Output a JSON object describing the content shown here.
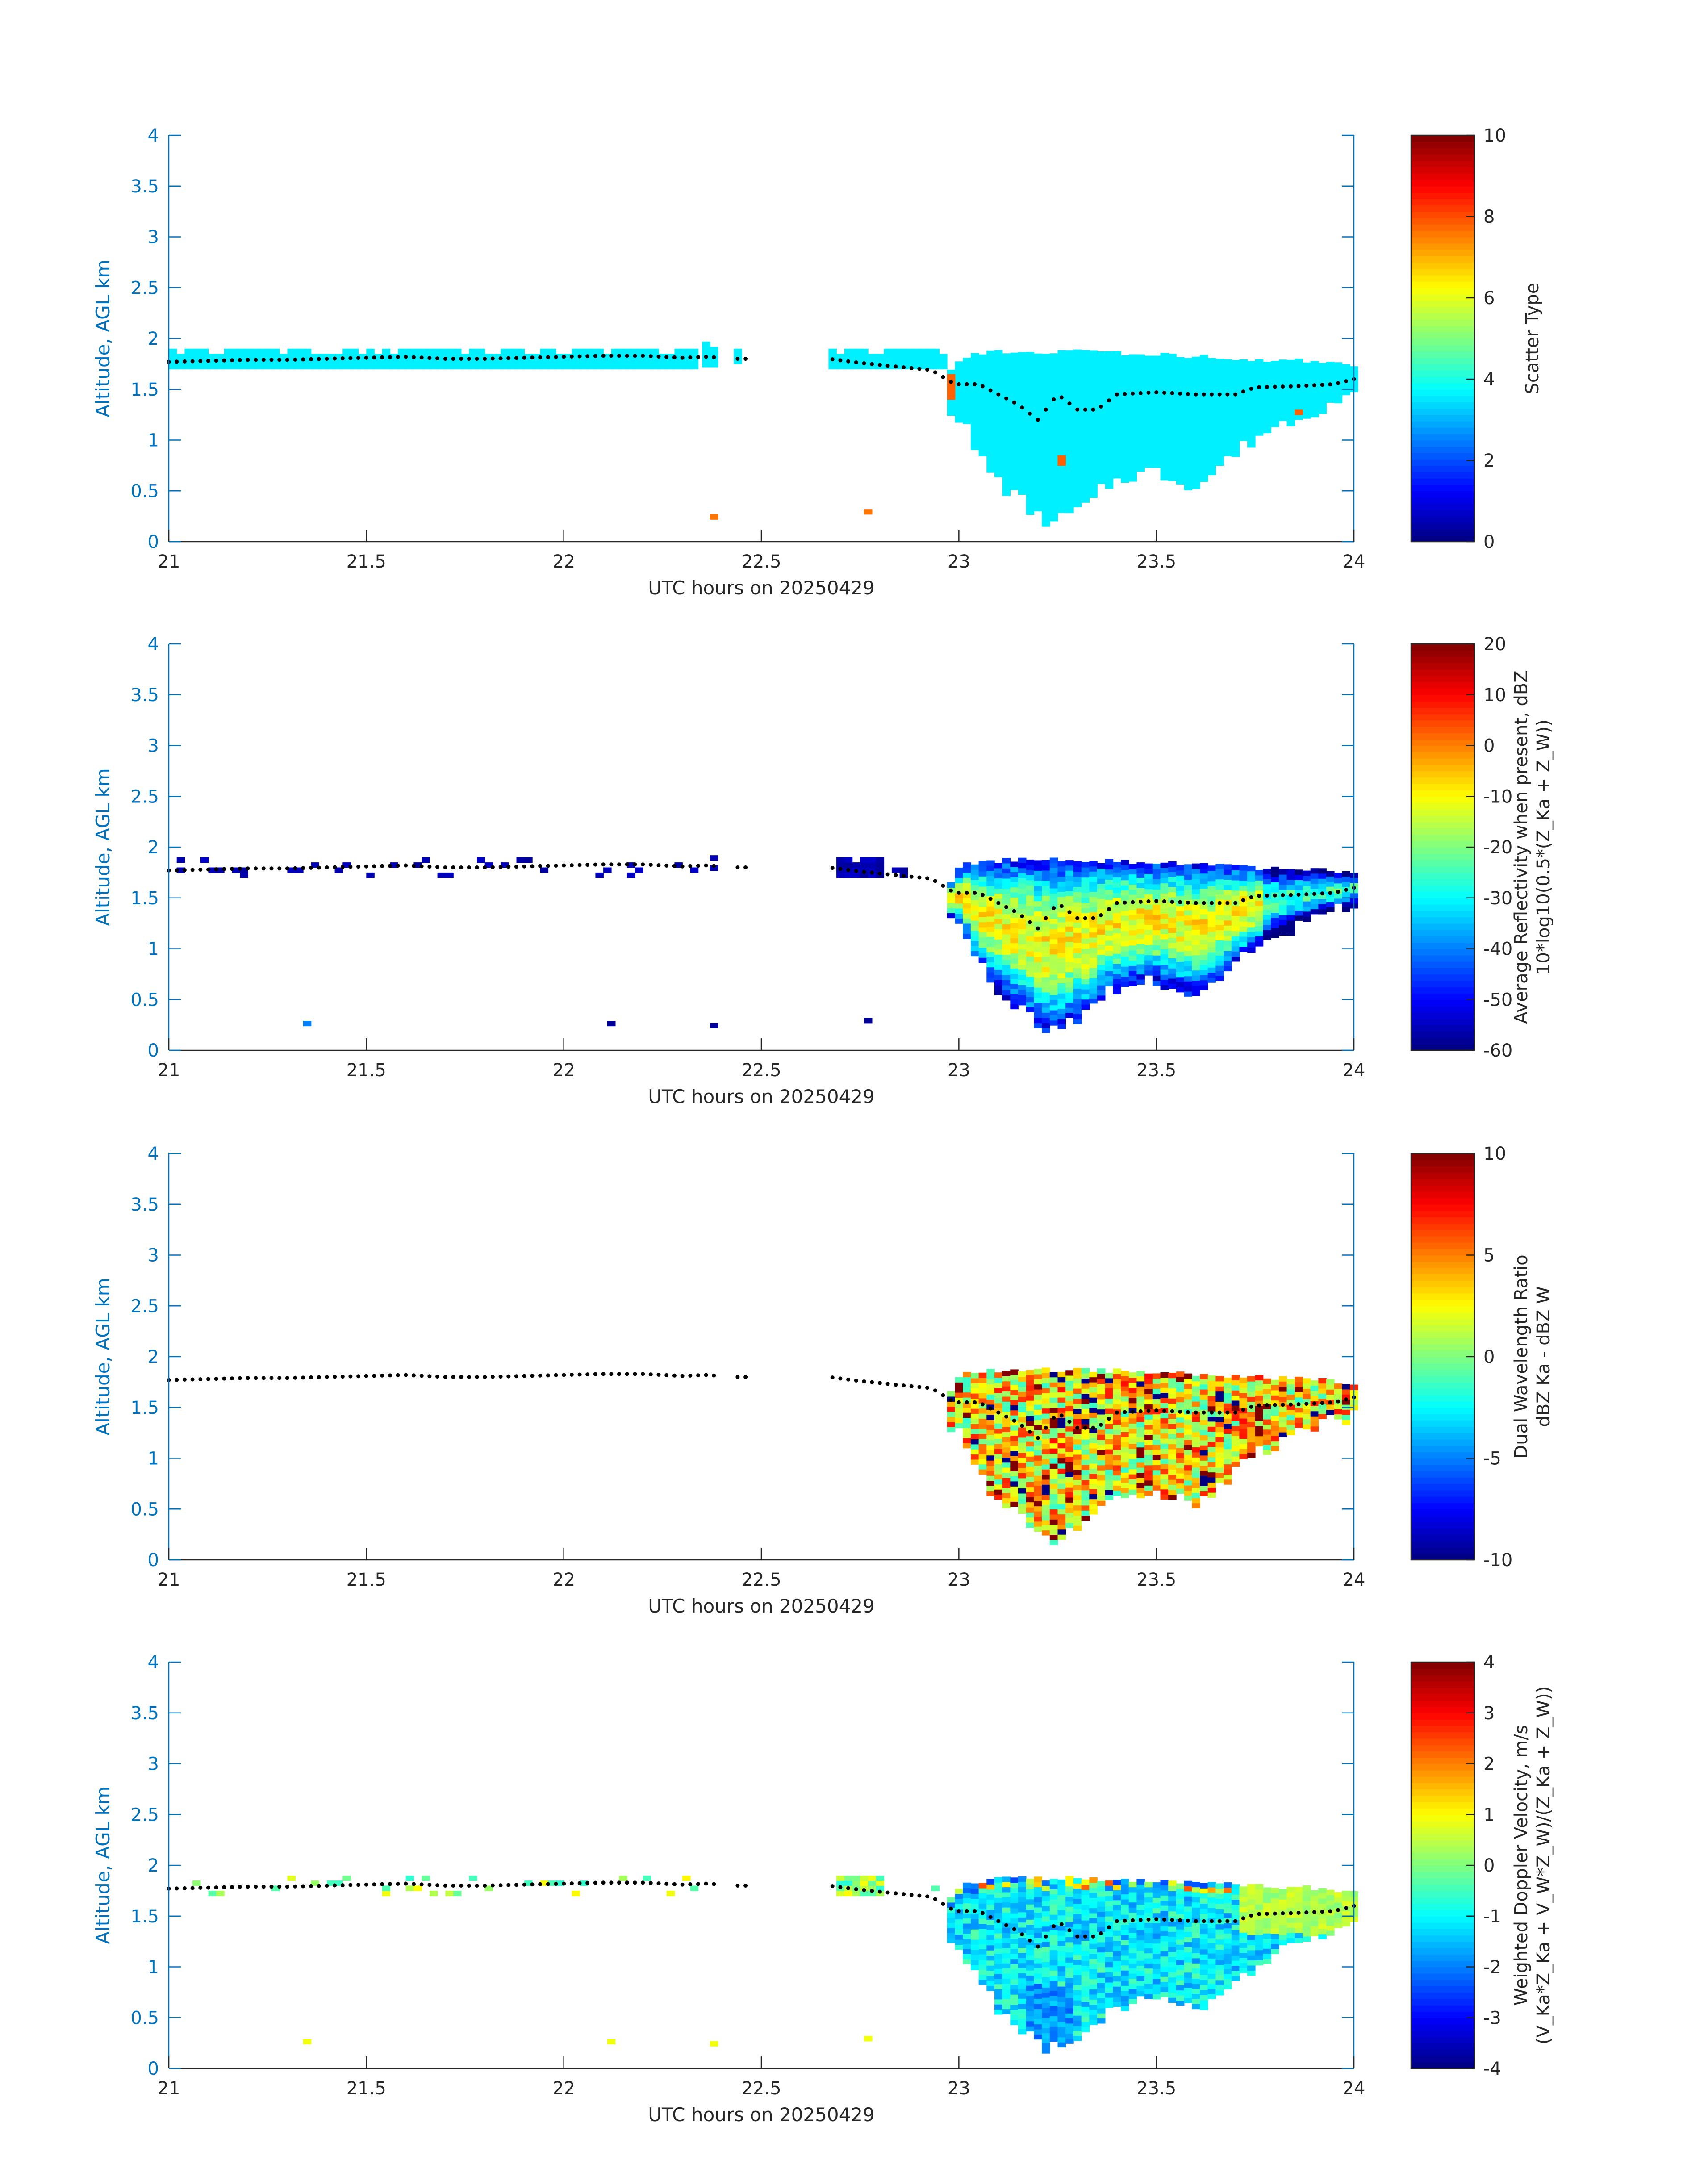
{
  "figure": {
    "date_label": "UTC hours on 20250429"
  },
  "colors": {
    "axis_blue": "#0072BD",
    "text_dark": "#262626",
    "cloud_top_marker": "#000000"
  },
  "chart_data": [
    {
      "type": "heatmap",
      "name": "scatter-type",
      "xlabel": "UTC hours on 20250429",
      "ylabel": "Altitude, AGL km",
      "xlim": [
        21,
        24
      ],
      "ylim": [
        0,
        4
      ],
      "xticks": [
        "21",
        "21.5",
        "22",
        "22.5",
        "23",
        "23.5",
        "24"
      ],
      "yticks": [
        "0",
        "0.5",
        "1",
        "1.5",
        "2",
        "2.5",
        "3",
        "3.5",
        "4"
      ],
      "colorbar_label_lines": [
        "Scatter Type"
      ],
      "colorbar_ticks": [
        "0",
        "2",
        "4",
        "6",
        "8",
        "10"
      ],
      "clim": [
        0,
        10
      ],
      "colormap": "jet",
      "fill_value": 3.6,
      "grid": false
    },
    {
      "type": "heatmap",
      "name": "reflectivity",
      "xlabel": "UTC hours on 20250429",
      "ylabel": "Altitude, AGL km",
      "xlim": [
        21,
        24
      ],
      "ylim": [
        0,
        4
      ],
      "xticks": [
        "21",
        "21.5",
        "22",
        "22.5",
        "23",
        "23.5",
        "24"
      ],
      "yticks": [
        "0",
        "0.5",
        "1",
        "1.5",
        "2",
        "2.5",
        "3",
        "3.5",
        "4"
      ],
      "colorbar_label_lines": [
        "Average Reflectivity when present, dBZ",
        "10*log10(0.5*(Z_Ka + Z_W))"
      ],
      "colorbar_ticks": [
        "-60",
        "-50",
        "-40",
        "-30",
        "-20",
        "-10",
        "0",
        "10",
        "20"
      ],
      "clim": [
        -60,
        20
      ],
      "colormap": "jet",
      "grid": false
    },
    {
      "type": "heatmap",
      "name": "dual-wavelength-ratio",
      "xlabel": "UTC hours on 20250429",
      "ylabel": "Altitude, AGL km",
      "xlim": [
        21,
        24
      ],
      "ylim": [
        0,
        4
      ],
      "xticks": [
        "21",
        "21.5",
        "22",
        "22.5",
        "23",
        "23.5",
        "24"
      ],
      "yticks": [
        "0",
        "0.5",
        "1",
        "1.5",
        "2",
        "2.5",
        "3",
        "3.5",
        "4"
      ],
      "colorbar_label_lines": [
        "Dual Wavelength Ratio",
        "dBZ Ka - dBZ W"
      ],
      "colorbar_ticks": [
        "-10",
        "-5",
        "0",
        "5",
        "10"
      ],
      "clim": [
        -10,
        10
      ],
      "colormap": "jet",
      "grid": false
    },
    {
      "type": "heatmap",
      "name": "doppler-velocity",
      "xlabel": "UTC hours on 20250429",
      "ylabel": "Altitude, AGL km",
      "xlim": [
        21,
        24
      ],
      "ylim": [
        0,
        4
      ],
      "xticks": [
        "21",
        "21.5",
        "22",
        "22.5",
        "23",
        "23.5",
        "24"
      ],
      "yticks": [
        "0",
        "0.5",
        "1",
        "1.5",
        "2",
        "2.5",
        "3",
        "3.5",
        "4"
      ],
      "colorbar_label_lines": [
        "Weighted Doppler Velocity, m/s",
        "(V_Ka*Z_Ka + V_W*Z_W)/(Z_Ka + Z_W))"
      ],
      "colorbar_ticks": [
        "-4",
        "-3",
        "-2",
        "-1",
        "0",
        "1",
        "2",
        "3",
        "4"
      ],
      "clim": [
        -4,
        4
      ],
      "colormap": "jet",
      "grid": false
    }
  ],
  "cloud_layer": {
    "stratus_segments": [
      {
        "t0": 21.0,
        "t1": 22.33,
        "base_km": 1.7,
        "top_km": 1.9
      },
      {
        "t0": 22.35,
        "t1": 22.39,
        "base_km": 1.72,
        "top_km": 1.95
      },
      {
        "t0": 22.43,
        "t1": 22.45,
        "base_km": 1.75,
        "top_km": 1.9
      },
      {
        "t0": 22.67,
        "t1": 22.96,
        "base_km": 1.7,
        "top_km": 1.9
      }
    ],
    "cloud_top_km": [
      [
        21.0,
        1.77
      ],
      [
        21.1,
        1.78
      ],
      [
        21.2,
        1.79
      ],
      [
        21.3,
        1.79
      ],
      [
        21.4,
        1.8
      ],
      [
        21.5,
        1.81
      ],
      [
        21.6,
        1.82
      ],
      [
        21.7,
        1.8
      ],
      [
        21.8,
        1.8
      ],
      [
        21.9,
        1.81
      ],
      [
        22.0,
        1.82
      ],
      [
        22.1,
        1.83
      ],
      [
        22.2,
        1.83
      ],
      [
        22.3,
        1.81
      ],
      [
        22.36,
        1.82
      ],
      [
        22.44,
        1.8
      ],
      [
        22.67,
        1.8
      ],
      [
        22.75,
        1.76
      ],
      [
        22.85,
        1.72
      ],
      [
        22.93,
        1.69
      ],
      [
        22.99,
        1.55
      ],
      [
        23.05,
        1.55
      ],
      [
        23.1,
        1.45
      ],
      [
        23.15,
        1.35
      ],
      [
        23.2,
        1.2
      ],
      [
        23.25,
        1.45
      ],
      [
        23.3,
        1.3
      ],
      [
        23.35,
        1.3
      ],
      [
        23.4,
        1.45
      ],
      [
        23.5,
        1.47
      ],
      [
        23.6,
        1.45
      ],
      [
        23.65,
        1.45
      ],
      [
        23.7,
        1.45
      ],
      [
        23.75,
        1.52
      ],
      [
        23.85,
        1.53
      ],
      [
        23.95,
        1.55
      ],
      [
        24.0,
        1.6
      ]
    ],
    "deep_cloud_top_km": [
      [
        22.97,
        1.65
      ],
      [
        23.0,
        1.8
      ],
      [
        23.1,
        1.85
      ],
      [
        23.3,
        1.85
      ],
      [
        23.5,
        1.82
      ],
      [
        23.7,
        1.78
      ],
      [
        23.9,
        1.75
      ],
      [
        24.0,
        1.7
      ]
    ],
    "deep_cloud_base_km": [
      [
        22.97,
        1.3
      ],
      [
        23.0,
        1.2
      ],
      [
        23.03,
        0.9
      ],
      [
        23.07,
        0.7
      ],
      [
        23.1,
        0.55
      ],
      [
        23.15,
        0.4
      ],
      [
        23.2,
        0.2
      ],
      [
        23.24,
        0.2
      ],
      [
        23.28,
        0.3
      ],
      [
        23.32,
        0.35
      ],
      [
        23.36,
        0.55
      ],
      [
        23.42,
        0.65
      ],
      [
        23.48,
        0.7
      ],
      [
        23.55,
        0.6
      ],
      [
        23.6,
        0.55
      ],
      [
        23.65,
        0.75
      ],
      [
        23.7,
        0.9
      ],
      [
        23.75,
        1.05
      ],
      [
        23.8,
        1.15
      ],
      [
        23.86,
        1.25
      ],
      [
        23.92,
        1.35
      ],
      [
        23.97,
        1.4
      ],
      [
        24.0,
        1.45
      ]
    ],
    "isolated_echoes": [
      {
        "t": 22.37,
        "alt_km": 0.22
      },
      {
        "t": 22.76,
        "alt_km": 0.27
      },
      {
        "t": 21.34,
        "alt_km": 0.24
      },
      {
        "t": 22.11,
        "alt_km": 0.24
      }
    ]
  }
}
